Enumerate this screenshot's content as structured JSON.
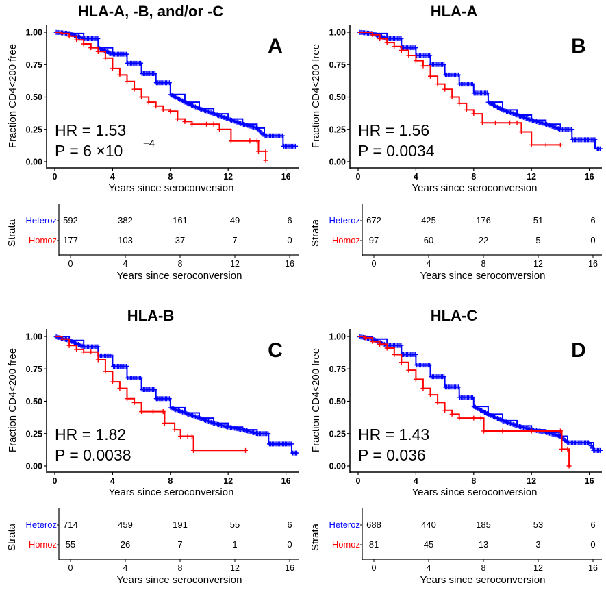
{
  "chart_data": [
    {
      "type": "line",
      "subtype": "kaplan-meier",
      "title": "HLA-A, -B, and/or -C",
      "panel_label": "A",
      "xlabel": "Years since seroconversion",
      "ylabel": "Fraction CD4<200 free",
      "xlim": [
        0,
        16.8
      ],
      "ylim": [
        0,
        1
      ],
      "xticks": [
        "0",
        "4",
        "8",
        "12",
        "16"
      ],
      "yticks": [
        "0.00",
        "0.25",
        "0.50",
        "0.75",
        "1.00"
      ],
      "hr_text": "HR = 1.53",
      "p_text": "P =  6 ×10",
      "p_exp": "−4",
      "series": [
        {
          "name": "Heteroz",
          "color": "#0000ff",
          "dense": true,
          "points": [
            [
              0,
              1
            ],
            [
              1,
              0.99
            ],
            [
              2,
              0.95
            ],
            [
              3,
              0.88
            ],
            [
              4,
              0.83
            ],
            [
              5,
              0.76
            ],
            [
              6,
              0.68
            ],
            [
              7,
              0.61
            ],
            [
              8,
              0.52
            ],
            [
              9,
              0.46
            ],
            [
              10,
              0.41
            ],
            [
              11,
              0.37
            ],
            [
              12,
              0.33
            ],
            [
              13,
              0.29
            ],
            [
              14,
              0.26
            ],
            [
              14.5,
              0.2
            ],
            [
              15.6,
              0.2
            ],
            [
              15.8,
              0.12
            ],
            [
              16.7,
              0.12
            ]
          ]
        },
        {
          "name": "Homoz",
          "color": "#ff0000",
          "dense": false,
          "points": [
            [
              0,
              1
            ],
            [
              0.5,
              0.99
            ],
            [
              1,
              0.97
            ],
            [
              1.5,
              0.94
            ],
            [
              2,
              0.91
            ],
            [
              2.5,
              0.88
            ],
            [
              3,
              0.85
            ],
            [
              3.5,
              0.8
            ],
            [
              4,
              0.72
            ],
            [
              4.5,
              0.67
            ],
            [
              5,
              0.62
            ],
            [
              5.5,
              0.56
            ],
            [
              6,
              0.5
            ],
            [
              6.5,
              0.46
            ],
            [
              7,
              0.43
            ],
            [
              7.5,
              0.4
            ],
            [
              8,
              0.39
            ],
            [
              8.5,
              0.33
            ],
            [
              9,
              0.31
            ],
            [
              9.5,
              0.29
            ],
            [
              10.5,
              0.29
            ],
            [
              11,
              0.29
            ],
            [
              11.4,
              0.25
            ],
            [
              12.2,
              0.16
            ],
            [
              13.5,
              0.16
            ],
            [
              14,
              0.16
            ],
            [
              14.1,
              0.08
            ],
            [
              14.6,
              0.08
            ],
            [
              14.6,
              0.01
            ]
          ]
        }
      ],
      "risk_table": {
        "title": "Strata",
        "times": [
          0,
          4,
          8,
          12,
          16
        ],
        "rows": [
          {
            "label": "Heteroz",
            "color": "#0000ff",
            "counts": [
              "592",
              "382",
              "161",
              "49",
              "6"
            ]
          },
          {
            "label": "Homoz",
            "color": "#ff0000",
            "counts": [
              "177",
              "103",
              "37",
              "7",
              "0"
            ]
          }
        ]
      }
    },
    {
      "type": "line",
      "subtype": "kaplan-meier",
      "title": "HLA-A",
      "panel_label": "B",
      "xlabel": "Years since seroconversion",
      "ylabel": "Fraction CD4<200 free",
      "xlim": [
        0,
        16.8
      ],
      "ylim": [
        0,
        1
      ],
      "xticks": [
        "0",
        "4",
        "8",
        "12",
        "16"
      ],
      "yticks": [
        "0.00",
        "0.25",
        "0.50",
        "0.75",
        "1.00"
      ],
      "hr_text": "HR = 1.56",
      "p_text": "P =  0.0034",
      "p_exp": "",
      "series": [
        {
          "name": "Heteroz",
          "color": "#0000ff",
          "dense": true,
          "points": [
            [
              0,
              1
            ],
            [
              1,
              0.99
            ],
            [
              2,
              0.95
            ],
            [
              3,
              0.88
            ],
            [
              4,
              0.82
            ],
            [
              5,
              0.75
            ],
            [
              6,
              0.67
            ],
            [
              7,
              0.6
            ],
            [
              8,
              0.53
            ],
            [
              9,
              0.46
            ],
            [
              10,
              0.4
            ],
            [
              11,
              0.36
            ],
            [
              12,
              0.32
            ],
            [
              13,
              0.29
            ],
            [
              14,
              0.25
            ],
            [
              14.8,
              0.17
            ],
            [
              16.2,
              0.17
            ],
            [
              16.4,
              0.1
            ],
            [
              16.8,
              0.1
            ]
          ]
        },
        {
          "name": "Homoz",
          "color": "#ff0000",
          "dense": false,
          "points": [
            [
              0,
              1
            ],
            [
              1,
              0.98
            ],
            [
              1.5,
              0.95
            ],
            [
              2,
              0.92
            ],
            [
              2.5,
              0.89
            ],
            [
              3,
              0.86
            ],
            [
              3.5,
              0.82
            ],
            [
              4,
              0.78
            ],
            [
              4.5,
              0.74
            ],
            [
              5,
              0.66
            ],
            [
              5.5,
              0.6
            ],
            [
              6,
              0.56
            ],
            [
              6.5,
              0.5
            ],
            [
              7,
              0.45
            ],
            [
              7.5,
              0.4
            ],
            [
              8,
              0.37
            ],
            [
              8.6,
              0.3
            ],
            [
              9.5,
              0.3
            ],
            [
              10.5,
              0.3
            ],
            [
              11,
              0.3
            ],
            [
              11.3,
              0.23
            ],
            [
              12,
              0.13
            ],
            [
              13,
              0.13
            ],
            [
              14,
              0.13
            ]
          ]
        }
      ],
      "risk_table": {
        "title": "Strata",
        "times": [
          0,
          4,
          8,
          12,
          16
        ],
        "rows": [
          {
            "label": "Heteroz",
            "color": "#0000ff",
            "counts": [
              "672",
              "425",
              "176",
              "51",
              "6"
            ]
          },
          {
            "label": "Homoz",
            "color": "#ff0000",
            "counts": [
              "97",
              "60",
              "22",
              "5",
              "0"
            ]
          }
        ]
      }
    },
    {
      "type": "line",
      "subtype": "kaplan-meier",
      "title": "HLA-B",
      "panel_label": "C",
      "xlabel": "Years since seroconversion",
      "ylabel": "Fraction CD4<200 free",
      "xlim": [
        0,
        16.8
      ],
      "ylim": [
        0,
        1
      ],
      "xticks": [
        "0",
        "4",
        "8",
        "12",
        "16"
      ],
      "yticks": [
        "0.00",
        "0.25",
        "0.50",
        "0.75",
        "1.00"
      ],
      "hr_text": "HR = 1.82",
      "p_text": "P =  0.0038",
      "p_exp": "",
      "series": [
        {
          "name": "Heteroz",
          "color": "#0000ff",
          "dense": true,
          "points": [
            [
              0,
              1
            ],
            [
              1,
              0.97
            ],
            [
              2,
              0.92
            ],
            [
              3,
              0.85
            ],
            [
              4,
              0.77
            ],
            [
              5,
              0.68
            ],
            [
              6,
              0.59
            ],
            [
              7,
              0.52
            ],
            [
              8,
              0.45
            ],
            [
              9,
              0.41
            ],
            [
              10,
              0.37
            ],
            [
              11,
              0.33
            ],
            [
              12,
              0.3
            ],
            [
              13,
              0.28
            ],
            [
              14,
              0.25
            ],
            [
              14.8,
              0.17
            ],
            [
              16.2,
              0.17
            ],
            [
              16.4,
              0.1
            ],
            [
              16.8,
              0.1
            ]
          ]
        },
        {
          "name": "Homoz",
          "color": "#ff0000",
          "dense": false,
          "points": [
            [
              0,
              1
            ],
            [
              0.5,
              0.98
            ],
            [
              1,
              0.93
            ],
            [
              1.5,
              0.9
            ],
            [
              2,
              0.88
            ],
            [
              2.5,
              0.88
            ],
            [
              3,
              0.82
            ],
            [
              3.5,
              0.73
            ],
            [
              4,
              0.65
            ],
            [
              4.5,
              0.6
            ],
            [
              5,
              0.52
            ],
            [
              5.5,
              0.49
            ],
            [
              6,
              0.42
            ],
            [
              6.8,
              0.42
            ],
            [
              7.5,
              0.42
            ],
            [
              7.6,
              0.33
            ],
            [
              8.3,
              0.28
            ],
            [
              8.7,
              0.23
            ],
            [
              9.2,
              0.23
            ],
            [
              9.5,
              0.23
            ],
            [
              9.6,
              0.12
            ],
            [
              13.2,
              0.12
            ]
          ]
        }
      ],
      "risk_table": {
        "title": "Strata",
        "times": [
          0,
          4,
          8,
          12,
          16
        ],
        "rows": [
          {
            "label": "Heteroz",
            "color": "#0000ff",
            "counts": [
              "714",
              "459",
              "191",
              "55",
              "6"
            ]
          },
          {
            "label": "Homoz",
            "color": "#ff0000",
            "counts": [
              "55",
              "26",
              "7",
              "1",
              "0"
            ]
          }
        ]
      }
    },
    {
      "type": "line",
      "subtype": "kaplan-meier",
      "title": "HLA-C",
      "panel_label": "D",
      "xlabel": "Years since seroconversion",
      "ylabel": "Fraction CD4<200 free",
      "xlim": [
        0,
        16.8
      ],
      "ylim": [
        0,
        1
      ],
      "xticks": [
        "0",
        "4",
        "8",
        "12",
        "16"
      ],
      "yticks": [
        "0.00",
        "0.25",
        "0.50",
        "0.75",
        "1.00"
      ],
      "hr_text": "HR = 1.43",
      "p_text": "P =  0.036",
      "p_exp": "",
      "series": [
        {
          "name": "Heteroz",
          "color": "#0000ff",
          "dense": true,
          "points": [
            [
              0,
              1
            ],
            [
              1,
              0.98
            ],
            [
              2,
              0.93
            ],
            [
              3,
              0.86
            ],
            [
              4,
              0.78
            ],
            [
              5,
              0.69
            ],
            [
              6,
              0.61
            ],
            [
              7,
              0.53
            ],
            [
              8,
              0.46
            ],
            [
              9,
              0.4
            ],
            [
              10,
              0.35
            ],
            [
              11,
              0.31
            ],
            [
              12,
              0.28
            ],
            [
              13,
              0.26
            ],
            [
              14,
              0.23
            ],
            [
              14.5,
              0.18
            ],
            [
              16,
              0.18
            ],
            [
              16.3,
              0.12
            ],
            [
              16.8,
              0.12
            ]
          ]
        },
        {
          "name": "Homoz",
          "color": "#ff0000",
          "dense": false,
          "points": [
            [
              0,
              1
            ],
            [
              0.5,
              0.99
            ],
            [
              1,
              0.96
            ],
            [
              1.5,
              0.94
            ],
            [
              2,
              0.91
            ],
            [
              2.5,
              0.86
            ],
            [
              3,
              0.8
            ],
            [
              3.5,
              0.74
            ],
            [
              4,
              0.67
            ],
            [
              4.5,
              0.6
            ],
            [
              5,
              0.55
            ],
            [
              5.5,
              0.49
            ],
            [
              6,
              0.43
            ],
            [
              6.5,
              0.4
            ],
            [
              7,
              0.37
            ],
            [
              8,
              0.37
            ],
            [
              8.5,
              0.37
            ],
            [
              8.7,
              0.27
            ],
            [
              10,
              0.27
            ],
            [
              12,
              0.27
            ],
            [
              14,
              0.27
            ],
            [
              14.1,
              0.13
            ],
            [
              14.5,
              0.13
            ],
            [
              14.6,
              0.0
            ]
          ]
        }
      ],
      "risk_table": {
        "title": "Strata",
        "times": [
          0,
          4,
          8,
          12,
          16
        ],
        "rows": [
          {
            "label": "Heteroz",
            "color": "#0000ff",
            "counts": [
              "688",
              "440",
              "185",
              "53",
              "6"
            ]
          },
          {
            "label": "Homoz",
            "color": "#ff0000",
            "counts": [
              "81",
              "45",
              "13",
              "3",
              "0"
            ]
          }
        ]
      }
    }
  ]
}
